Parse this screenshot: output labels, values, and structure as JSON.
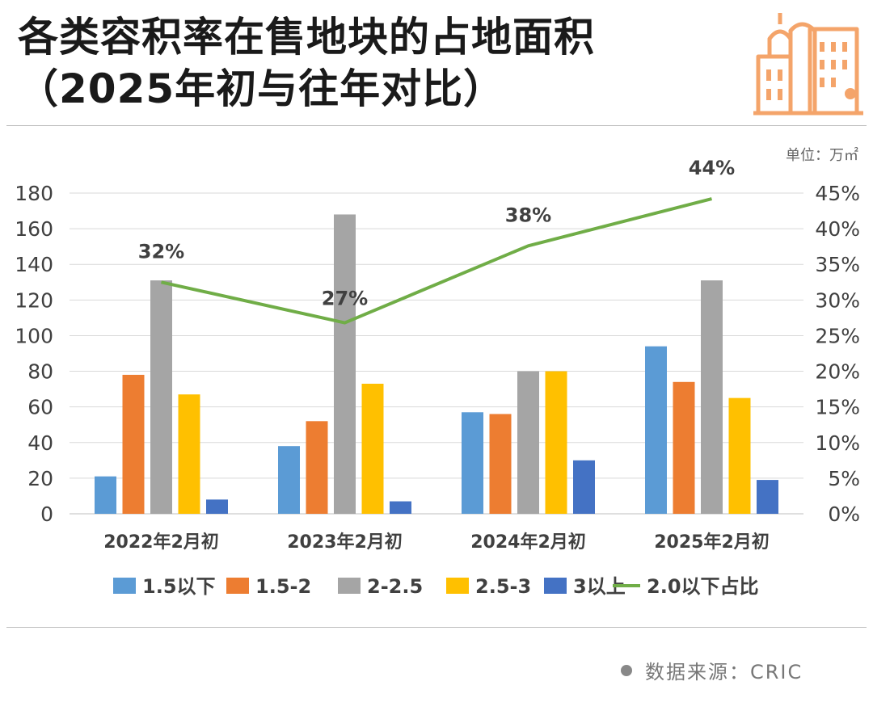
{
  "header": {
    "title_line1": "各类容积率在售地块的占地面积",
    "title_line2": "（2025年初与往年对比）"
  },
  "unit_label": "单位：万㎡",
  "footer": {
    "source": "数据来源：CRIC"
  },
  "logo_icon": "city-buildings-icon",
  "colors": {
    "s1": "#5b9bd5",
    "s2": "#ed7d31",
    "s3": "#a5a5a5",
    "s4": "#ffc000",
    "s5": "#4472c4",
    "line": "#70ad47",
    "accent": "#f4a46a"
  },
  "chart_data": {
    "type": "bar",
    "categories": [
      "2022年2月初",
      "2023年2月初",
      "2024年2月初",
      "2025年2月初"
    ],
    "series": [
      {
        "name": "1.5以下",
        "values": [
          21,
          38,
          57,
          94
        ]
      },
      {
        "name": "1.5-2",
        "values": [
          78,
          52,
          56,
          74
        ]
      },
      {
        "name": "2-2.5",
        "values": [
          131,
          168,
          80,
          131
        ]
      },
      {
        "name": "2.5-3",
        "values": [
          67,
          73,
          80,
          65
        ]
      },
      {
        "name": "3以上",
        "values": [
          8,
          7,
          30,
          19
        ]
      }
    ],
    "line_series": {
      "name": "2.0以下占比",
      "values": [
        32.5,
        26.8,
        37.6,
        44.2
      ],
      "labels": [
        "32%",
        "27%",
        "38%",
        "44%"
      ]
    },
    "ylim": [
      0,
      180
    ],
    "yticks": [
      "0",
      "20",
      "40",
      "60",
      "80",
      "100",
      "120",
      "140",
      "160",
      "180"
    ],
    "y2lim": [
      0,
      45
    ],
    "y2ticks": [
      "0%",
      "5%",
      "10%",
      "15%",
      "20%",
      "25%",
      "30%",
      "35%",
      "40%",
      "45%"
    ],
    "grid": true,
    "legend": "bottom"
  }
}
